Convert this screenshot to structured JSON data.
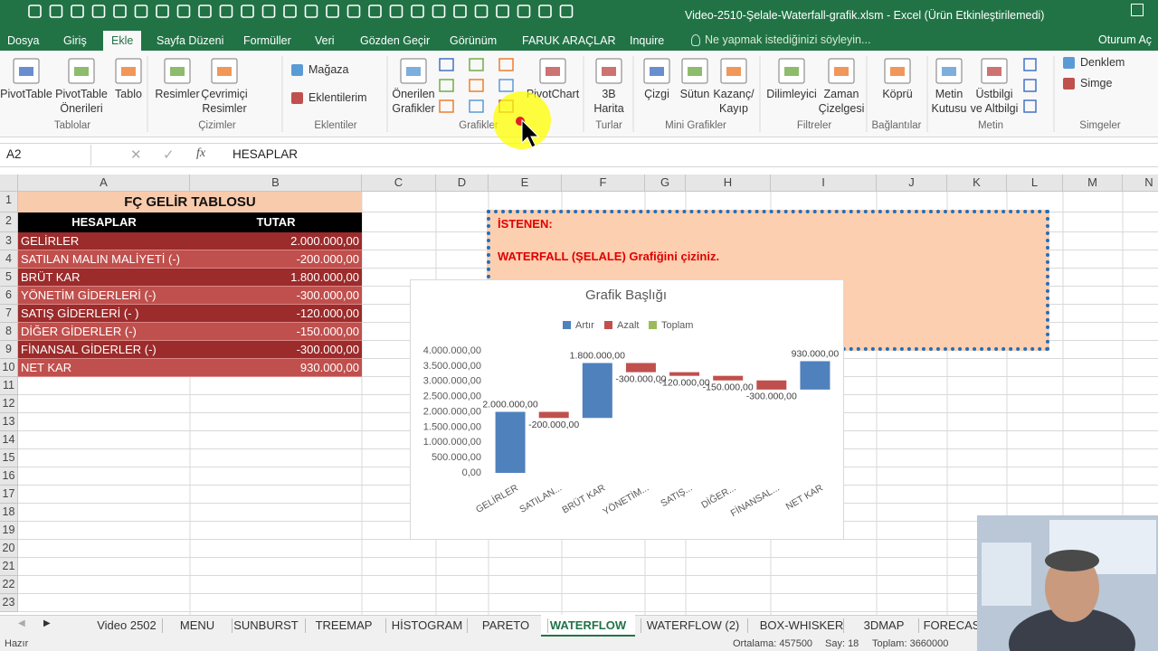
{
  "title_bar": {
    "title": "Video-2510-Şelale-Waterfall-grafik.xlsm - Excel (Ürün Etkinleştirilemedi)"
  },
  "menu_tabs": [
    "Dosya",
    "Giriş",
    "Ekle",
    "Sayfa Düzeni",
    "Formüller",
    "Veri",
    "Gözden Geçir",
    "Görünüm",
    "FARUK ARAÇLAR",
    "Inquire"
  ],
  "search_hint": "Ne yapmak istediğinizi söyleyin...",
  "sign_in": "Oturum Aç",
  "ribbon_groups": [
    {
      "label": "Tablolar",
      "buttons": [
        [
          "PivotTable"
        ],
        [
          "PivotTable",
          "Önerileri"
        ],
        [
          "Tablo"
        ]
      ]
    },
    {
      "label": "Çizimler",
      "buttons": [
        [
          "Resimler"
        ],
        [
          "Çevrimiçi",
          "Resimler"
        ]
      ]
    },
    {
      "label": "Eklentiler",
      "small_buttons": [
        "Mağaza",
        "Eklentilerim"
      ]
    },
    {
      "label": "Grafikler",
      "buttons": [
        [
          "Önerilen",
          "Grafikler"
        ],
        [
          "PivotChart"
        ]
      ]
    },
    {
      "label": "Turlar",
      "buttons": [
        [
          "3B",
          "Harita"
        ]
      ]
    },
    {
      "label": "Mini Grafikler",
      "buttons": [
        [
          "Çizgi"
        ],
        [
          "Sütun"
        ],
        [
          "Kazanç/",
          "Kayıp"
        ]
      ]
    },
    {
      "label": "Filtreler",
      "buttons": [
        [
          "Dilimleyici"
        ],
        [
          "Zaman",
          "Çizelgesi"
        ]
      ]
    },
    {
      "label": "Bağlantılar",
      "buttons": [
        [
          "Köprü"
        ]
      ]
    },
    {
      "label": "Metin",
      "buttons": [
        [
          "Metin",
          "Kutusu"
        ],
        [
          "Üstbilgi",
          "ve Altbilgi"
        ]
      ]
    },
    {
      "label": "Simgeler",
      "small_buttons": [
        "Denklem",
        "Simge"
      ]
    }
  ],
  "formula_bar": {
    "name_box": "A2",
    "function_label": "fx",
    "content": "HESAPLAR"
  },
  "columns": [
    "A",
    "B",
    "C",
    "D",
    "E",
    "F",
    "G",
    "H",
    "I",
    "J",
    "K",
    "L",
    "M",
    "N"
  ],
  "rows": [
    1,
    2,
    3,
    4,
    5,
    6,
    7,
    8,
    9,
    10,
    11,
    12,
    13,
    14,
    15,
    16,
    17,
    18,
    19,
    20,
    21,
    22,
    23
  ],
  "sheet": {
    "title": "FÇ GELİR TABLOSU",
    "header": [
      "HESAPLAR",
      "TUTAR"
    ],
    "rows": [
      [
        "GELİRLER",
        "2.000.000,00"
      ],
      [
        "SATILAN MALIN MALİYETİ (-)",
        "-200.000,00"
      ],
      [
        "BRÜT KAR",
        "1.800.000,00"
      ],
      [
        "YÖNETİM GİDERLERİ (-)",
        "-300.000,00"
      ],
      [
        "SATIŞ GİDERLERİ (- )",
        "-120.000,00"
      ],
      [
        "DİĞER GİDERLER (-)",
        "-150.000,00"
      ],
      [
        "FİNANSAL GİDERLER (-)",
        "-300.000,00"
      ],
      [
        "NET KAR",
        "930.000,00"
      ]
    ]
  },
  "note": {
    "heading": "İSTENEN:",
    "text": "WATERFALL (ŞELALE) Grafiğini çiziniz."
  },
  "chart_data": {
    "type": "waterfall",
    "title": "Grafik Başlığı",
    "legend": [
      {
        "name": "Artır",
        "color": "#4f81bd"
      },
      {
        "name": "Azalt",
        "color": "#c0504d"
      },
      {
        "name": "Toplam",
        "color": "#9bbb59"
      }
    ],
    "categories": [
      "GELİRLER",
      "SATILAN...",
      "BRÜT KAR",
      "YÖNETİM...",
      "SATIŞ...",
      "DİĞER...",
      "FİNANSAL...",
      "NET KAR"
    ],
    "values": [
      2000000,
      -200000,
      1800000,
      -300000,
      -120000,
      -150000,
      -300000,
      930000
    ],
    "value_labels": [
      "2.000.000,00",
      "-200.000,00",
      "1.800.000,00",
      "-300.000,00",
      "-120.000,00",
      "-150.000,00",
      "-300.000,00",
      "930.000,00"
    ],
    "ylim": [
      0,
      4000000
    ],
    "yticks": [
      {
        "value": 0,
        "label": "0,00"
      },
      {
        "value": 500000,
        "label": "500.000,00"
      },
      {
        "value": 1000000,
        "label": "1.000.000,00"
      },
      {
        "value": 1500000,
        "label": "1.500.000,00"
      },
      {
        "value": 2000000,
        "label": "2.000.000,00"
      },
      {
        "value": 2500000,
        "label": "2.500.000,00"
      },
      {
        "value": 3000000,
        "label": "3.000.000,00"
      },
      {
        "value": 3500000,
        "label": "3.500.000,00"
      },
      {
        "value": 4000000,
        "label": "4.000.000,00"
      }
    ],
    "grid": false
  },
  "sheet_tabs": [
    "Video 2502",
    "MENU",
    "SUNBURST",
    "TREEMAP",
    "HİSTOGRAM",
    "PARETO",
    "WATERFLOW",
    "WATERFLOW (2)",
    "BOX-WHISKER",
    "3DMAP",
    "FORECAS"
  ],
  "status_bar": {
    "ready": "Hazır",
    "average": "Ortalama: 457500",
    "count": "Say: 18",
    "sum": "Toplam: 3660000"
  }
}
